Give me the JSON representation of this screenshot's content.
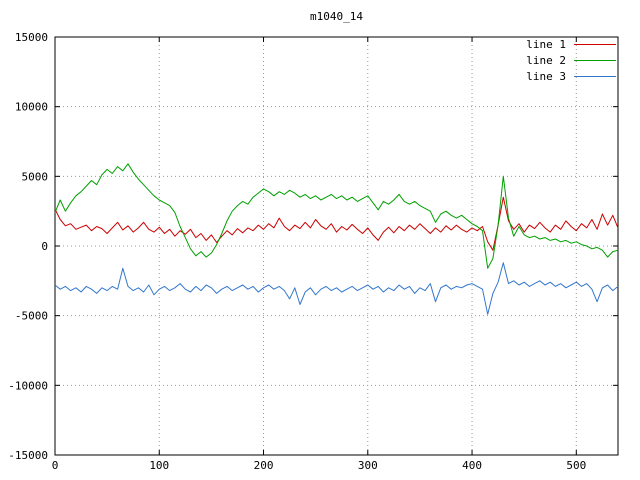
{
  "window": {
    "title": "m1040_14"
  },
  "chart_data": {
    "type": "line",
    "title": "m1040_14",
    "xlabel": "",
    "ylabel": "",
    "xlim": [
      0,
      540
    ],
    "ylim": [
      -15000,
      15000
    ],
    "x_ticks": [
      0,
      100,
      200,
      300,
      400,
      500
    ],
    "y_ticks": [
      -15000,
      -10000,
      -5000,
      0,
      5000,
      10000,
      15000
    ],
    "grid": "dotted",
    "legend_position": "top-right",
    "colors": {
      "line1": "#cc0000",
      "line2": "#00a000",
      "line3": "#3377cc",
      "grid": "#999999",
      "border": "#000000"
    },
    "x": [
      0,
      5,
      10,
      15,
      20,
      25,
      30,
      35,
      40,
      45,
      50,
      55,
      60,
      65,
      70,
      75,
      80,
      85,
      90,
      95,
      100,
      105,
      110,
      115,
      120,
      125,
      130,
      135,
      140,
      145,
      150,
      155,
      160,
      165,
      170,
      175,
      180,
      185,
      190,
      195,
      200,
      205,
      210,
      215,
      220,
      225,
      230,
      235,
      240,
      245,
      250,
      255,
      260,
      265,
      270,
      275,
      280,
      285,
      290,
      295,
      300,
      305,
      310,
      315,
      320,
      325,
      330,
      335,
      340,
      345,
      350,
      355,
      360,
      365,
      370,
      375,
      380,
      385,
      390,
      395,
      400,
      405,
      410,
      415,
      420,
      425,
      430,
      435,
      440,
      445,
      450,
      455,
      460,
      465,
      470,
      475,
      480,
      485,
      490,
      495,
      500,
      505,
      510,
      515,
      520,
      525,
      530,
      535,
      540
    ],
    "series": [
      {
        "name": "line 1",
        "color": "#cc0000",
        "values": [
          2650,
          1900,
          1450,
          1600,
          1200,
          1350,
          1500,
          1100,
          1400,
          1250,
          900,
          1300,
          1700,
          1150,
          1450,
          1000,
          1300,
          1700,
          1200,
          1000,
          1350,
          900,
          1200,
          700,
          1100,
          850,
          1200,
          600,
          900,
          400,
          800,
          250,
          700,
          1100,
          800,
          1250,
          950,
          1300,
          1100,
          1500,
          1200,
          1600,
          1300,
          2000,
          1400,
          1100,
          1500,
          1250,
          1700,
          1300,
          1900,
          1450,
          1200,
          1600,
          1000,
          1400,
          1150,
          1550,
          1200,
          900,
          1300,
          800,
          400,
          1000,
          1350,
          950,
          1400,
          1100,
          1500,
          1200,
          1600,
          1250,
          900,
          1300,
          1000,
          1450,
          1150,
          1500,
          1200,
          1000,
          1300,
          1100,
          1400,
          300,
          -300,
          1500,
          3500,
          1800,
          1200,
          1600,
          1000,
          1500,
          1250,
          1700,
          1300,
          1000,
          1500,
          1200,
          1800,
          1400,
          1100,
          1600,
          1300,
          1900,
          1200,
          2300,
          1500,
          2200,
          1300
        ]
      },
      {
        "name": "line 2",
        "color": "#00a000",
        "values": [
          2400,
          3300,
          2500,
          3100,
          3600,
          3900,
          4300,
          4700,
          4400,
          5100,
          5500,
          5200,
          5700,
          5400,
          5900,
          5300,
          4800,
          4400,
          4000,
          3600,
          3300,
          3100,
          2900,
          2400,
          1400,
          600,
          -200,
          -700,
          -400,
          -800,
          -500,
          100,
          900,
          1800,
          2500,
          2900,
          3200,
          3000,
          3500,
          3800,
          4100,
          3900,
          3600,
          3900,
          3700,
          4000,
          3800,
          3500,
          3700,
          3400,
          3600,
          3300,
          3500,
          3700,
          3400,
          3600,
          3300,
          3500,
          3200,
          3400,
          3600,
          3100,
          2600,
          3200,
          3000,
          3300,
          3700,
          3200,
          3000,
          3200,
          2900,
          2700,
          2500,
          1700,
          2300,
          2500,
          2200,
          2000,
          2200,
          1900,
          1600,
          1400,
          1100,
          -1600,
          -900,
          1500,
          5000,
          2000,
          700,
          1400,
          800,
          600,
          700,
          500,
          600,
          400,
          500,
          300,
          400,
          200,
          300,
          100,
          0,
          -200,
          -100,
          -300,
          -800,
          -400,
          -300
        ]
      },
      {
        "name": "line 3",
        "color": "#3377cc",
        "values": [
          -2800,
          -3100,
          -2900,
          -3200,
          -3000,
          -3300,
          -2900,
          -3100,
          -3400,
          -3000,
          -3200,
          -2900,
          -3100,
          -1600,
          -2900,
          -3200,
          -3000,
          -3300,
          -2800,
          -3500,
          -3100,
          -2900,
          -3200,
          -3000,
          -2700,
          -3100,
          -3300,
          -2900,
          -3200,
          -2800,
          -3000,
          -3400,
          -3100,
          -2900,
          -3200,
          -3000,
          -2800,
          -3100,
          -2900,
          -3300,
          -3000,
          -2800,
          -3100,
          -2900,
          -3200,
          -3800,
          -3000,
          -4200,
          -3300,
          -3000,
          -3500,
          -3100,
          -2900,
          -3200,
          -3000,
          -3300,
          -3100,
          -2900,
          -3200,
          -3000,
          -2800,
          -3100,
          -2900,
          -3300,
          -3000,
          -3200,
          -2800,
          -3100,
          -2900,
          -3400,
          -3000,
          -3200,
          -2700,
          -4000,
          -3000,
          -2800,
          -3100,
          -2900,
          -3000,
          -2800,
          -2700,
          -2900,
          -3100,
          -4900,
          -3400,
          -2600,
          -1200,
          -2700,
          -2500,
          -2800,
          -2600,
          -2900,
          -2700,
          -2500,
          -2800,
          -2600,
          -2900,
          -2700,
          -3000,
          -2800,
          -2600,
          -2900,
          -2700,
          -3100,
          -4000,
          -3000,
          -2800,
          -3200,
          -2900
        ]
      }
    ]
  }
}
